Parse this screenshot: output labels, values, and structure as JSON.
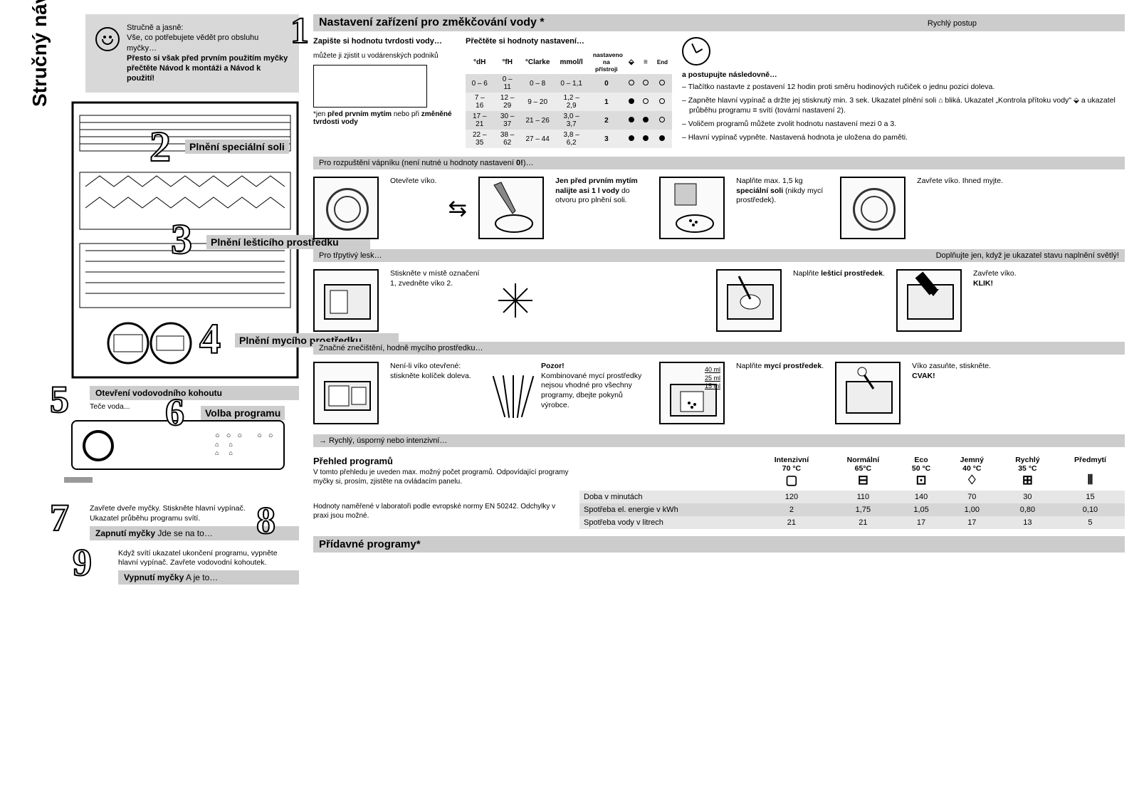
{
  "title": "Stručný návod",
  "intro": {
    "line1": "Stručně a jasně:",
    "line2": "Vše, co potřebujete vědět pro obsluhu myčky…",
    "line3": "Přesto si však před prvním použitím myčky přečtěte Návod k montáži a Návod k použití!"
  },
  "leftSteps": {
    "s2": "Plnění speciální soli",
    "s3": "Plnění lešticího prostředku",
    "s4": "Plnění mycího prostředku",
    "s5": "Otevření vodovodního kohoutu",
    "s5sub": "Teče voda...",
    "s6": "Volba programu",
    "s7pre": "Zavřete dveře myčky. Stiskněte hlavní vypínač. Ukazatel průběhu programu svítí.",
    "s7": "Zapnutí myčky",
    "s7tail": "Jde se na to…",
    "s8": "Přídavné programy*",
    "s9pre": "Když svítí ukazatel ukončení programu, vypněte hlavní vypínač. Zavřete vodovodní kohoutek.",
    "s9": "Vypnutí myčky",
    "s9tail": "A je to…"
  },
  "sec1": {
    "title": "Nastavení zařízení pro změkčování vody *",
    "col1h": "Zapište si hodnotu tvrdosti vody…",
    "col1t": "můžete ji zjistit u vodárenských podniků",
    "col1f": "*jen před prvním mytím nebo při změněné tvrdosti vody",
    "col2h": "Přečtěte si hodnoty nastavení…",
    "col3h": "Rychlý postup",
    "col3s": "a postupujte následovně…",
    "instr": [
      "Tlačítko nastavte z postavení 12 hodin proti směru hodinových ručiček o jednu pozici doleva.",
      "Zapněte hlavní vypínač a držte jej stisknutý min. 3 sek. Ukazatel plnění soli ⌂ bliká. Ukazatel „Kontrola přítoku vody\" ⬙ a ukazatel průběhu programu ≡ svítí (tovární nastavení 2).",
      "Voličem programů můžete zvolit hodnotu nastavení mezi 0 a 3.",
      "Hlavní vypínač vypněte. Nastavená hodnota je uložena do paměti."
    ],
    "table": {
      "headers": [
        "°dH",
        "°fH",
        "°Clarke",
        "mmol/l",
        "nastaveno na přístroji"
      ],
      "rows": [
        [
          "0 – 6",
          "0 – 11",
          "0 – 8",
          "0 – 1,1",
          "0",
          "○",
          "○",
          "○"
        ],
        [
          "7 – 16",
          "12 – 29",
          "9 – 20",
          "1,2 – 2,9",
          "1",
          "●",
          "○",
          "○"
        ],
        [
          "17 – 21",
          "30 – 37",
          "21 – 26",
          "3,0 – 3,7",
          "2",
          "●",
          "●",
          "○"
        ],
        [
          "22 – 35",
          "38 – 62",
          "27 – 44",
          "3,8 – 6,2",
          "3",
          "●",
          "●",
          "●"
        ]
      ]
    }
  },
  "sec2": {
    "sub": "Pro rozpuštění vápníku (není nutné u hodnoty nastavení 0!)…",
    "t1": "Otevřete víko.",
    "t2a": "Jen před prvním mytím nalijte asi 1 l vody",
    "t2b": " do otvoru pro plnění soli.",
    "t3a": "Naplňte max. 1,5 kg ",
    "t3b": "speciální soli",
    "t3c": " (nikdy mycí prostředek).",
    "t4": "Zavřete víko. Ihned myjte."
  },
  "sec3": {
    "sub": "Pro třpytivý lesk…",
    "sub2": "Doplňujte jen, když je ukazatel stavu naplnění světlý!",
    "t1": "Stiskněte v místě označení 1, zvedněte víko 2.",
    "t2a": "Naplňte ",
    "t2b": "lešticí prostředek",
    "t2c": ".",
    "t3": "Zavřete víko. KLIK!"
  },
  "sec4": {
    "sub": "Značné znečištění, hodně mycího prostředku…",
    "t1": "Není-li víko otevřené: stiskněte kolíček doleva.",
    "warnH": "Pozor!",
    "warn": "Kombinované mycí prostředky nejsou vhodné pro všechny programy, dbejte pokynů výrobce.",
    "ml": [
      "40 ml",
      "25 ml",
      "15 ml"
    ],
    "t2a": "Naplňte ",
    "t2b": "mycí prostředek",
    "t2c": ".",
    "t3": "Víko zasuňte, stiskněte. CVAK!"
  },
  "sec6": {
    "sub": "→ Rychlý, úsporný nebo intenzivní…",
    "h": "Přehled programů",
    "note": "V tomto přehledu je uveden max. možný počet programů. Odpovídající programy myčky si, prosím, zjistěte na ovládacím panelu.",
    "note2": "Hodnoty naměřené v laboratoři podle evropské normy EN 50242. Odchylky v praxi jsou možné.",
    "cols": [
      "Intenzivní 70 °C",
      "Normální 65°C",
      "Eco 50 °C",
      "Jemný 40 °C",
      "Rychlý 35 °C",
      "Předmytí"
    ],
    "rows": [
      {
        "label": "Doba v minutách",
        "vals": [
          "120",
          "110",
          "140",
          "70",
          "30",
          "15"
        ]
      },
      {
        "label": "Spotřeba el. energie v kWh",
        "vals": [
          "2",
          "1,75",
          "1,05",
          "1,00",
          "0,80",
          "0,10"
        ]
      },
      {
        "label": "Spotřeba vody v litrech",
        "vals": [
          "21",
          "21",
          "17",
          "17",
          "13",
          "5"
        ]
      }
    ]
  }
}
